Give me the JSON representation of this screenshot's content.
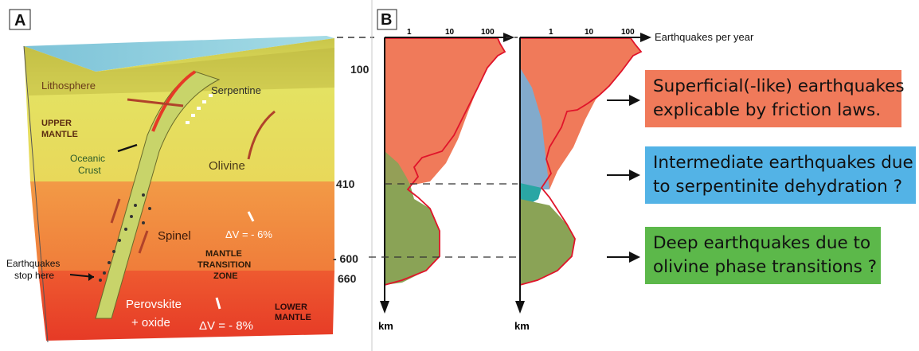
{
  "panel_a": {
    "label": "A",
    "depth_ticks": [
      "100",
      "410",
      "- 600",
      "660"
    ],
    "layers": {
      "lithosphere": "Lithosphere",
      "upper_mantle": [
        "UPPER",
        "MANTLE"
      ],
      "serpentine": "Serpentine",
      "oceanic_crust": [
        "Oceanic",
        "Crust"
      ],
      "olivine": "Olivine",
      "spinel": "Spinel",
      "transition_zone": [
        "MANTLE",
        "TRANSITION",
        "ZONE"
      ],
      "perovskite": [
        "Perovskite",
        "+ oxide"
      ],
      "lower_mantle": [
        "LOWER",
        "MANTLE"
      ]
    },
    "dv_transition": "ΔV = - 6%",
    "dv_lower": "ΔV = - 8%",
    "earthquakes_stop": [
      "Earthquakes",
      "stop here"
    ]
  },
  "panel_b": {
    "label": "B",
    "x_ticks": [
      "1",
      "10",
      "100"
    ],
    "x_axis_label": "Earthquakes per year",
    "y_axis_label": "km",
    "colors": {
      "superficial": "#f07a5a",
      "intermediate": "#6fb3e0",
      "deep": "#8aa356",
      "outline": "#e0142a"
    }
  },
  "boxes": [
    {
      "lines": [
        "Superficial(-like) earthquakes",
        "explicable by friction laws."
      ],
      "color": "#f07a5a"
    },
    {
      "lines": [
        "Intermediate earthquakes due",
        "to serpentinite dehydration ?"
      ],
      "color": "#53b3e6"
    },
    {
      "lines": [
        "Deep earthquakes due to",
        "olivine phase transitions ?"
      ],
      "color": "#5cb84a"
    }
  ]
}
